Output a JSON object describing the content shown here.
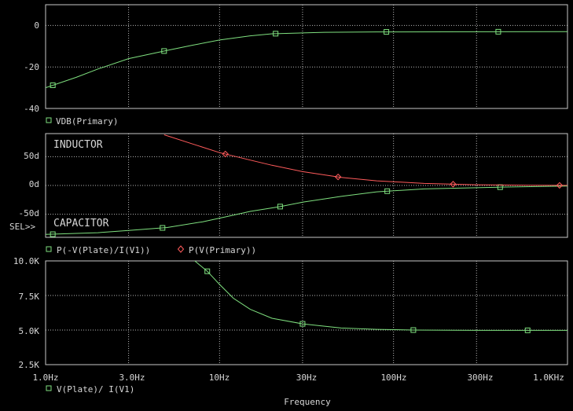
{
  "chart_data": [
    {
      "type": "line",
      "x_scale": "log",
      "xlim": [
        1,
        1000
      ],
      "ylim": [
        -40,
        10
      ],
      "yticks": [
        0,
        -20,
        -40
      ],
      "ytick_labels": [
        "0",
        "-20",
        "-40"
      ],
      "grid": true,
      "legend": "bottom-left",
      "series": [
        {
          "name": "VDB(Primary)",
          "color": "#7fe07f",
          "marker": "square",
          "x": [
            1,
            1.5,
            2,
            3,
            5,
            7,
            10,
            15,
            20,
            40,
            80,
            200,
            400,
            1000
          ],
          "y": [
            -30,
            -25,
            -21,
            -16,
            -12,
            -9.5,
            -7,
            -5,
            -4,
            -3.3,
            -3.1,
            -3.05,
            -3.02,
            -3.01
          ],
          "marker_x": [
            1.1,
            4.8,
            21,
            91,
            400
          ]
        }
      ]
    },
    {
      "type": "line",
      "x_scale": "log",
      "xlim": [
        1,
        1000
      ],
      "ylim": [
        -90,
        90
      ],
      "yticks": [
        50,
        0,
        -50
      ],
      "ytick_labels": [
        "50d",
        "0d",
        "-50d"
      ],
      "grid": true,
      "legend": "bottom-left",
      "annotations": [
        "INDUCTOR",
        "CAPACITOR"
      ],
      "sel_label": "SEL>>",
      "series": [
        {
          "name": "P(-V(Plate)/I(V1))",
          "color": "#7fe07f",
          "marker": "square",
          "x": [
            1,
            2,
            3,
            5,
            8,
            11,
            15,
            22,
            30,
            50,
            80,
            150,
            400,
            1000
          ],
          "y": [
            -85,
            -82,
            -78,
            -73,
            -63,
            -54,
            -45,
            -37,
            -29,
            -19,
            -11,
            -6,
            -3,
            -1
          ],
          "marker_x": [
            1.1,
            4.7,
            22.3,
            92,
            410
          ]
        },
        {
          "name": "P(V(Primary))",
          "color": "#ff5b5b",
          "marker": "diamond",
          "x": [
            4.8,
            7,
            10,
            15,
            20,
            30,
            50,
            80,
            150,
            300,
            600,
            1000
          ],
          "y": [
            88,
            72,
            57,
            44,
            35,
            24,
            14,
            8,
            3.5,
            1.2,
            0.3,
            0.1
          ],
          "marker_x": [
            10.8,
            48,
            220,
            900
          ]
        }
      ]
    },
    {
      "type": "line",
      "x_scale": "log",
      "xlim": [
        1,
        1000
      ],
      "ylim": [
        2500,
        10000
      ],
      "yticks": [
        10000,
        7500,
        5000,
        2500
      ],
      "ytick_labels": [
        "10.0K",
        "7.5K",
        "5.0K",
        "2.5K"
      ],
      "xticks": [
        1,
        3,
        10,
        30,
        100,
        300,
        1000
      ],
      "xtick_labels": [
        "1.0Hz",
        "3.0Hz",
        "10Hz",
        "30Hz",
        "100Hz",
        "300Hz",
        "1.0KHz"
      ],
      "xlabel": "Frequency",
      "grid": true,
      "legend": "bottom-left",
      "series": [
        {
          "name": "V(Plate)/ I(V1)",
          "color": "#7fe07f",
          "marker": "square",
          "x": [
            7.2,
            8.5,
            10,
            12,
            15,
            20,
            30,
            50,
            80,
            130,
            300,
            1000
          ],
          "y": [
            10000,
            9250,
            8300,
            7300,
            6500,
            5850,
            5450,
            5150,
            5050,
            5000,
            4980,
            4980
          ],
          "marker_x": [
            8.5,
            30,
            130,
            590
          ]
        }
      ]
    }
  ]
}
